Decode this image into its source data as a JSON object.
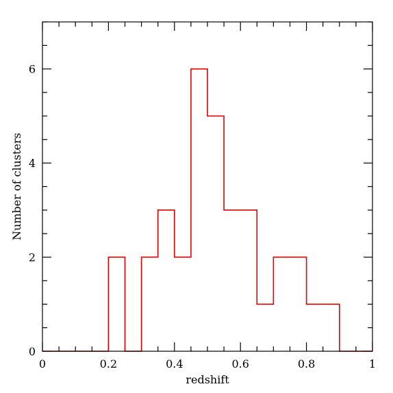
{
  "chart_data": {
    "type": "histogram",
    "xlabel": "redshift",
    "ylabel": "Number of clusters",
    "xlim": [
      0,
      1
    ],
    "ylim": [
      0,
      7
    ],
    "x_ticks": [
      "0",
      "0.2",
      "0.4",
      "0.6",
      "0.8",
      "1"
    ],
    "x_tick_values": [
      0,
      0.2,
      0.4,
      0.6,
      0.8,
      1
    ],
    "y_ticks": [
      "0",
      "2",
      "4",
      "6"
    ],
    "y_tick_values": [
      0,
      2,
      4,
      6
    ],
    "x_minor_step": 0.05,
    "y_minor_step": 0.5,
    "bin_edges": [
      0.0,
      0.05,
      0.1,
      0.15,
      0.2,
      0.25,
      0.3,
      0.35,
      0.4,
      0.45,
      0.5,
      0.55,
      0.6,
      0.65,
      0.7,
      0.75,
      0.8,
      0.85,
      0.9,
      0.95,
      1.0
    ],
    "counts": [
      0,
      0,
      0,
      0,
      2,
      0,
      2,
      3,
      2,
      6,
      5,
      3,
      3,
      1,
      2,
      2,
      1,
      1,
      0,
      0
    ],
    "line_color": "#dd0000",
    "grid": false,
    "legend": "none"
  }
}
